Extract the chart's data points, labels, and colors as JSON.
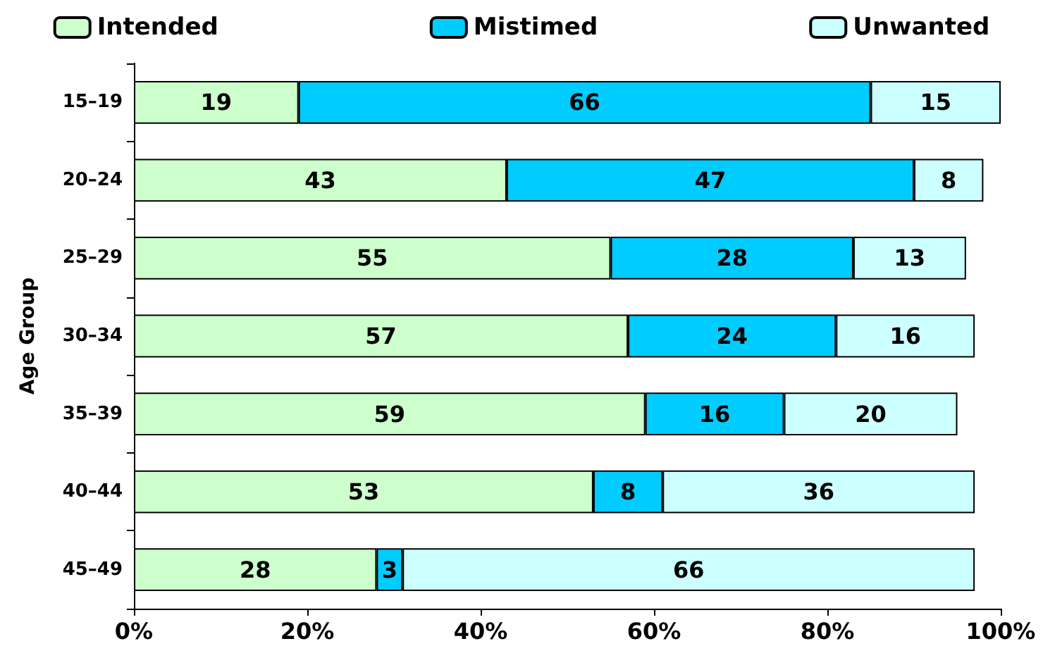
{
  "chart_data": {
    "type": "bar",
    "orientation": "horizontal",
    "stacked": true,
    "ylabel": "Age Group",
    "categories": [
      "15–19",
      "20–24",
      "25–29",
      "30–34",
      "35–39",
      "40–44",
      "45–49"
    ],
    "series": [
      {
        "name": "Intended",
        "color": "#ccffcc",
        "values": [
          19,
          43,
          55,
          57,
          59,
          53,
          28
        ]
      },
      {
        "name": "Mistimed",
        "color": "#00ccff",
        "values": [
          66,
          47,
          28,
          24,
          16,
          8,
          3
        ]
      },
      {
        "name": "Unwanted",
        "color": "#ccffff",
        "values": [
          15,
          8,
          13,
          16,
          20,
          36,
          66
        ]
      }
    ],
    "xlim": [
      0,
      100
    ],
    "xticks": [
      {
        "value": 0,
        "label": "0%"
      },
      {
        "value": 20,
        "label": "20%"
      },
      {
        "value": 40,
        "label": "40%"
      },
      {
        "value": 60,
        "label": "60%"
      },
      {
        "value": 80,
        "label": "80%"
      },
      {
        "value": 100,
        "label": "100%"
      }
    ],
    "data_labels": true,
    "legend": "top",
    "grid": false
  }
}
